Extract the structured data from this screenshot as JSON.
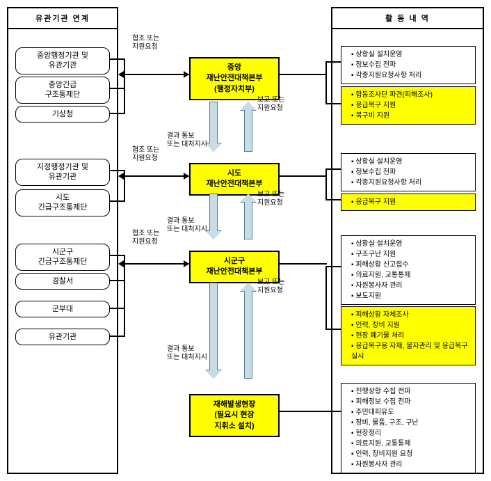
{
  "headers": {
    "left": "유관기관 연계",
    "right": "활 동 내 역"
  },
  "left_orgs": {
    "g1a": "중앙행정기관 및\n유관기관",
    "g1b": "중앙긴급\n구조통제단",
    "g1c": "기상청",
    "g2a": "지정행정기관 및\n유관기관",
    "g2b": "시도\n긴급구조통제단",
    "g3a": "시군구\n긴급구조통제단",
    "g3b": "경찰서",
    "g3c": "군부대",
    "g3d": "유관기관"
  },
  "center": {
    "c1": "중앙\n재난안전대책본부\n(행정자치부)",
    "c2": "시도\n재난안전대책본부",
    "c3": "시군구\n재난안전대책본부",
    "c4": "재해발생현장\n(필요시 현장\n지휘소 설치)"
  },
  "labels": {
    "coop": "협조 또는\n지원요청",
    "report": "보고 또는\n지원요청",
    "result": "결과 통보\n또는 대처지시"
  },
  "activities": {
    "a1w": [
      "상황실 설치운영",
      "정보수집 전파",
      "각종지원요청사항 처리"
    ],
    "a1y": [
      "합동조사단 파견(피해조사)",
      "응급복구 지원",
      "복구비 지원"
    ],
    "a2w": [
      "상황실 설치운영",
      "정보수집 전파",
      "각종지원요청사항 처리"
    ],
    "a2y": [
      "응급복구 지원"
    ],
    "a3w": [
      "상황실 설치운영",
      "구조구난 지원",
      "피해상황 신고접수",
      "의료지원, 교통통제",
      "자원봉사자 관리",
      "보도지원"
    ],
    "a3y": [
      "피해상황 자체조사",
      "인력, 장비 지원",
      "현장 폐기물 처리",
      "응급복구용 자재, 물자관리 및 응급복구실시"
    ],
    "a4w": [
      "진행상황 수집 전파",
      "피해정보 수집 전파",
      "주민대피유도",
      "장비, 물품, 구조, 구난",
      "현장정리",
      "의료지원, 교통통제",
      "인력, 장비지원 요청",
      "자원봉사자 관리"
    ]
  }
}
